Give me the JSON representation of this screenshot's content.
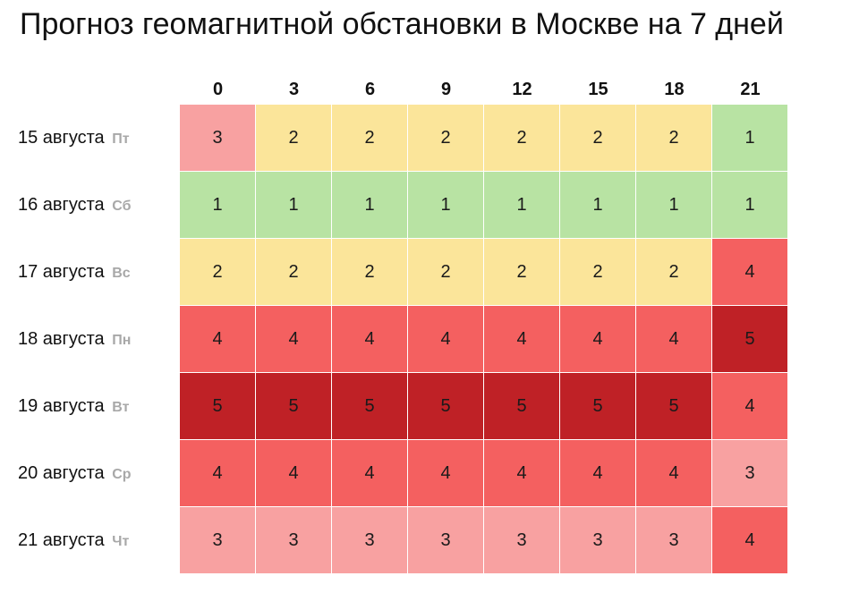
{
  "title": "Прогноз геомагнитной обстановки в Москве на 7 дней",
  "chart_data": {
    "type": "heatmap",
    "title": "Прогноз геомагнитной обстановки в Москве на 7 дней",
    "columns": [
      "0",
      "3",
      "6",
      "9",
      "12",
      "15",
      "18",
      "21"
    ],
    "rows": [
      {
        "date": "15 августа",
        "dow": "Пт",
        "values": [
          3,
          2,
          2,
          2,
          2,
          2,
          2,
          1
        ]
      },
      {
        "date": "16 августа",
        "dow": "Сб",
        "values": [
          1,
          1,
          1,
          1,
          1,
          1,
          1,
          1
        ]
      },
      {
        "date": "17 августа",
        "dow": "Вс",
        "values": [
          2,
          2,
          2,
          2,
          2,
          2,
          2,
          4
        ]
      },
      {
        "date": "18 августа",
        "dow": "Пн",
        "values": [
          4,
          4,
          4,
          4,
          4,
          4,
          4,
          5
        ]
      },
      {
        "date": "19 августа",
        "dow": "Вт",
        "values": [
          5,
          5,
          5,
          5,
          5,
          5,
          5,
          4
        ]
      },
      {
        "date": "20 августа",
        "dow": "Ср",
        "values": [
          4,
          4,
          4,
          4,
          4,
          4,
          4,
          3
        ]
      },
      {
        "date": "21 августа",
        "dow": "Чт",
        "values": [
          3,
          3,
          3,
          3,
          3,
          3,
          3,
          4
        ]
      }
    ],
    "color_scale": {
      "1": "#b8e3a3",
      "2": "#fbe59a",
      "3": "#f8a1a1",
      "4": "#f46060",
      "5": "#bf2126"
    }
  }
}
